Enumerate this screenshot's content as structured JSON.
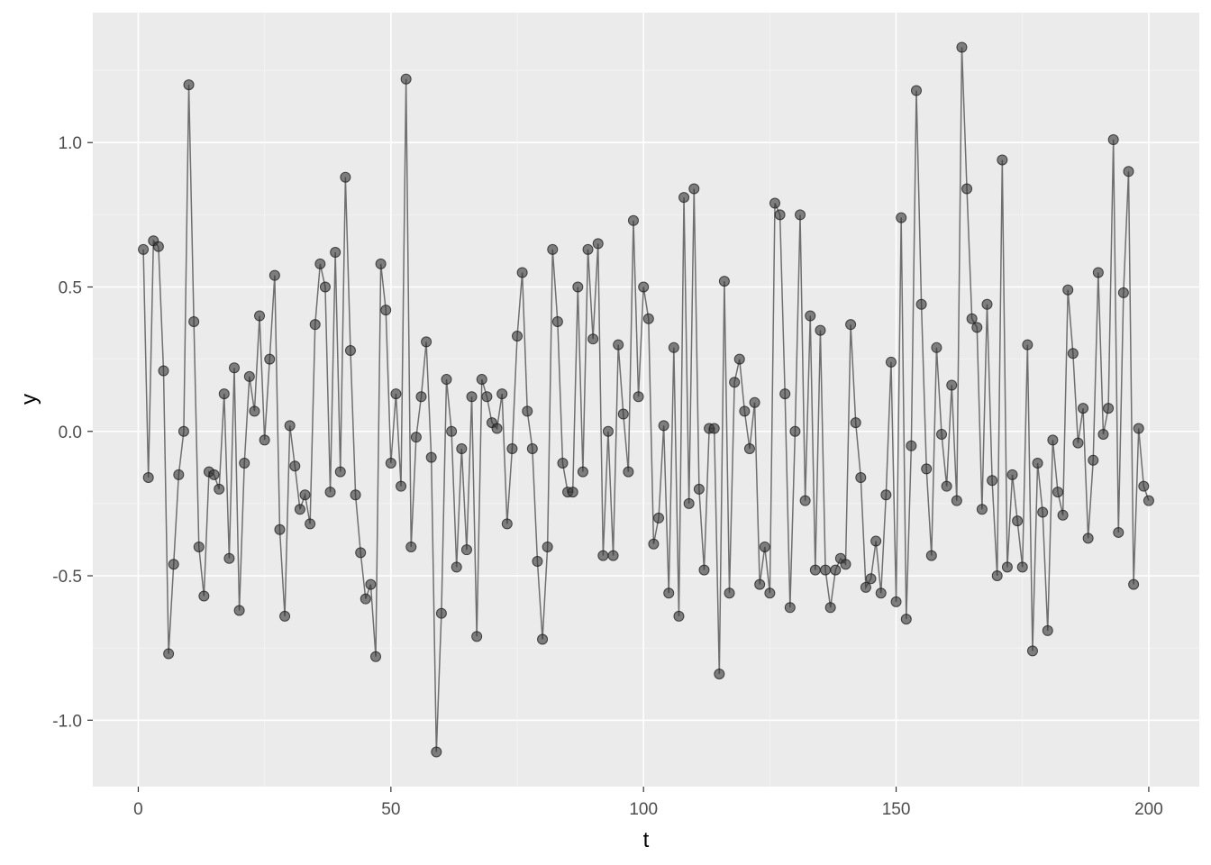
{
  "chart_data": {
    "type": "line",
    "xlabel": "t",
    "ylabel": "y",
    "xlim": [
      -9,
      210
    ],
    "ylim": [
      -1.23,
      1.45
    ],
    "x_ticks": [
      0,
      50,
      100,
      150,
      200
    ],
    "x_tick_labels": [
      "0",
      "50",
      "100",
      "150",
      "200"
    ],
    "y_ticks": [
      -1.0,
      -0.5,
      0.0,
      0.5,
      1.0
    ],
    "y_tick_labels": [
      "-1.0",
      "-0.5",
      "0.0",
      "0.5",
      "1.0"
    ],
    "grid": true,
    "markers": true,
    "series": [
      {
        "x": [
          1,
          2,
          3,
          4,
          5,
          6,
          7,
          8,
          9,
          10,
          11,
          12,
          13,
          14,
          15,
          16,
          17,
          18,
          19,
          20,
          21,
          22,
          23,
          24,
          25,
          26,
          27,
          28,
          29,
          30,
          31,
          32,
          33,
          34,
          35,
          36,
          37,
          38,
          39,
          40,
          41,
          42,
          43,
          44,
          45,
          46,
          47,
          48,
          49,
          50,
          51,
          52,
          53,
          54,
          55,
          56,
          57,
          58,
          59,
          60,
          61,
          62,
          63,
          64,
          65,
          66,
          67,
          68,
          69,
          70,
          71,
          72,
          73,
          74,
          75,
          76,
          77,
          78,
          79,
          80,
          81,
          82,
          83,
          84,
          85,
          86,
          87,
          88,
          89,
          90,
          91,
          92,
          93,
          94,
          95,
          96,
          97,
          98,
          99,
          100,
          101,
          102,
          103,
          104,
          105,
          106,
          107,
          108,
          109,
          110,
          111,
          112,
          113,
          114,
          115,
          116,
          117,
          118,
          119,
          120,
          121,
          122,
          123,
          124,
          125,
          126,
          127,
          128,
          129,
          130,
          131,
          132,
          133,
          134,
          135,
          136,
          137,
          138,
          139,
          140,
          141,
          142,
          143,
          144,
          145,
          146,
          147,
          148,
          149,
          150,
          151,
          152,
          153,
          154,
          155,
          156,
          157,
          158,
          159,
          160,
          161,
          162,
          163,
          164,
          165,
          166,
          167,
          168,
          169,
          170,
          171,
          172,
          173,
          174,
          175,
          176,
          177,
          178,
          179,
          180,
          181,
          182,
          183,
          184,
          185,
          186,
          187,
          188,
          189,
          190,
          191,
          192,
          193,
          194,
          195,
          196,
          197,
          198,
          199,
          200
        ],
        "y": [
          0.63,
          -0.16,
          0.66,
          0.64,
          0.21,
          -0.77,
          -0.46,
          -0.15,
          0.0,
          1.2,
          0.38,
          -0.4,
          -0.57,
          -0.14,
          -0.15,
          -0.2,
          0.13,
          -0.44,
          0.22,
          -0.62,
          -0.11,
          0.19,
          0.07,
          0.4,
          -0.03,
          0.25,
          0.54,
          -0.34,
          -0.64,
          0.02,
          -0.12,
          -0.27,
          -0.22,
          -0.32,
          0.37,
          0.58,
          0.5,
          -0.21,
          0.62,
          -0.14,
          0.88,
          0.28,
          -0.22,
          -0.42,
          -0.58,
          -0.53,
          -0.78,
          0.58,
          0.42,
          -0.11,
          0.13,
          -0.19,
          1.22,
          -0.4,
          -0.02,
          0.12,
          0.31,
          -0.09,
          -1.11,
          -0.63,
          0.18,
          0.0,
          -0.47,
          -0.06,
          -0.41,
          0.12,
          -0.71,
          0.18,
          0.12,
          0.03,
          0.01,
          0.13,
          -0.32,
          -0.06,
          0.33,
          0.55,
          0.07,
          -0.06,
          -0.45,
          -0.72,
          -0.4,
          0.63,
          0.38,
          -0.11,
          -0.21,
          -0.21,
          0.5,
          -0.14,
          0.63,
          0.32,
          0.65,
          -0.43,
          0.0,
          -0.43,
          0.3,
          0.06,
          -0.14,
          0.73,
          0.12,
          0.5,
          0.39,
          -0.39,
          -0.3,
          0.02,
          -0.56,
          0.29,
          -0.64,
          0.81,
          -0.25,
          0.84,
          -0.2,
          -0.48,
          0.01,
          0.01,
          -0.84,
          0.52,
          -0.56,
          0.17,
          0.25,
          0.07,
          -0.06,
          0.1,
          -0.53,
          -0.4,
          -0.56,
          0.79,
          0.75,
          0.13,
          -0.61,
          0.0,
          0.75,
          -0.24,
          0.4,
          -0.48,
          0.35,
          -0.48,
          -0.61,
          -0.48,
          -0.44,
          -0.46,
          0.37,
          0.03,
          -0.16,
          -0.54,
          -0.51,
          -0.38,
          -0.56,
          -0.22,
          0.24,
          -0.59,
          0.74,
          -0.65,
          -0.05,
          1.18,
          0.44,
          -0.13,
          -0.43,
          0.29,
          -0.01,
          -0.19,
          0.16,
          -0.24,
          1.33,
          0.84,
          0.39,
          0.36,
          -0.27,
          0.44,
          -0.17,
          -0.5,
          0.94,
          -0.47,
          -0.15,
          -0.31,
          -0.47,
          0.3,
          -0.76,
          -0.11,
          -0.28,
          -0.69,
          -0.03,
          -0.21,
          -0.29,
          0.49,
          0.27,
          -0.04,
          0.08,
          -0.37,
          -0.1,
          0.55,
          -0.01,
          0.08,
          1.01,
          -0.35,
          0.48,
          0.9,
          -0.53,
          0.01,
          -0.19,
          -0.24
        ]
      }
    ]
  }
}
